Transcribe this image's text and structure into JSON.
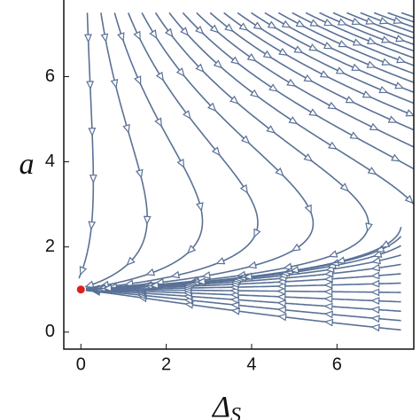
{
  "chart_data": {
    "type": "streamplot",
    "x_label": "Δ",
    "x_label_sub": "S",
    "y_label": "a",
    "xlim": [
      -0.4,
      7.8
    ],
    "xticks": [
      0,
      2,
      4,
      6
    ],
    "ylim": [
      -0.4,
      7.8
    ],
    "yticks": [
      0,
      2,
      4,
      6
    ],
    "stream_color": "#5a7196",
    "points": {
      "x": [
        0
      ],
      "y": [
        1
      ],
      "color": "#e0201b"
    }
  }
}
